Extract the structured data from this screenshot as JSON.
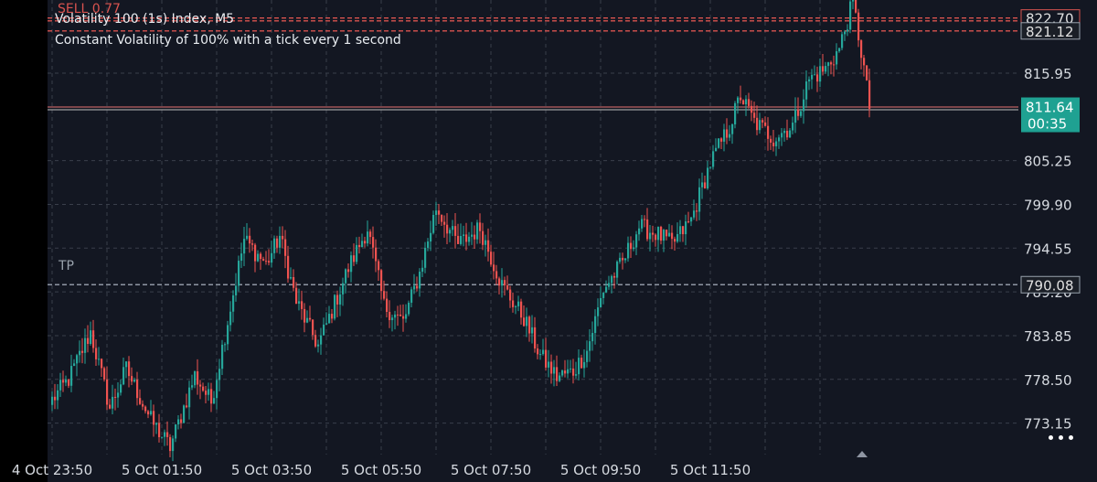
{
  "header": {
    "sell_label": "SELL 0.77",
    "title": "Volatility 100 (1s) Index, M5",
    "subtitle": "Constant Volatility of 100% with a tick every 1 second"
  },
  "tp_label": "TP",
  "price_tags": {
    "sell_high": "822.70",
    "sell_second": "821.12",
    "current_price": "811.64",
    "countdown": "00:35",
    "tp": "790.08"
  },
  "colors": {
    "background": "#131722",
    "grid": "#3a3f4b",
    "bull": "#26a69a",
    "bear": "#ef5350",
    "sell_line": "#d9534f",
    "tp_line": "#8f96a3",
    "current_tag": "#1fa192"
  },
  "chart_data": {
    "type": "candlestick",
    "title": "Volatility 100 (1s) Index, M5",
    "timeframe": "M5",
    "y_ticks": [
      773.15,
      778.5,
      783.85,
      789.2,
      794.55,
      799.9,
      805.25,
      815.95
    ],
    "ylim": [
      769.3,
      824.9
    ],
    "x_ticks": [
      "4 Oct 23:50",
      "5 Oct 01:50",
      "5 Oct 03:50",
      "5 Oct 05:50",
      "5 Oct 07:50",
      "5 Oct 09:50",
      "5 Oct 11:50"
    ],
    "grid": true,
    "levels": {
      "sell_entry": 822.7,
      "sell_second": 821.12,
      "current": 811.64,
      "take_profit": 790.08
    },
    "anchors": [
      [
        0,
        776.0
      ],
      [
        6,
        778.5
      ],
      [
        14,
        784.3
      ],
      [
        21,
        775.0
      ],
      [
        27,
        779.8
      ],
      [
        36,
        773.5
      ],
      [
        43,
        770.2
      ],
      [
        52,
        779.0
      ],
      [
        58,
        775.7
      ],
      [
        70,
        795.6
      ],
      [
        78,
        792.6
      ],
      [
        83,
        796.0
      ],
      [
        89,
        788.0
      ],
      [
        97,
        782.6
      ],
      [
        108,
        792.1
      ],
      [
        115,
        797.0
      ],
      [
        121,
        787.5
      ],
      [
        128,
        785.5
      ],
      [
        134,
        791.5
      ],
      [
        140,
        799.5
      ],
      [
        148,
        795.0
      ],
      [
        156,
        797.0
      ],
      [
        164,
        790.0
      ],
      [
        172,
        786.0
      ],
      [
        178,
        781.4
      ],
      [
        184,
        778.8
      ],
      [
        190,
        779.5
      ],
      [
        195,
        782.0
      ],
      [
        201,
        789.5
      ],
      [
        208,
        792.8
      ],
      [
        214,
        797.2
      ],
      [
        221,
        796.2
      ],
      [
        226,
        795.0
      ],
      [
        233,
        798.0
      ],
      [
        240,
        805.0
      ],
      [
        247,
        809.4
      ],
      [
        251,
        813.2
      ],
      [
        256,
        810.0
      ],
      [
        263,
        808.0
      ],
      [
        270,
        809.6
      ],
      [
        276,
        815.2
      ],
      [
        282,
        816.5
      ],
      [
        287,
        818.9
      ],
      [
        292,
        824.7
      ],
      [
        296,
        816.5
      ],
      [
        298,
        811.6
      ]
    ],
    "candles": {
      "count": 299,
      "first_time": "4 Oct 23:50",
      "interval_min": 5
    }
  }
}
